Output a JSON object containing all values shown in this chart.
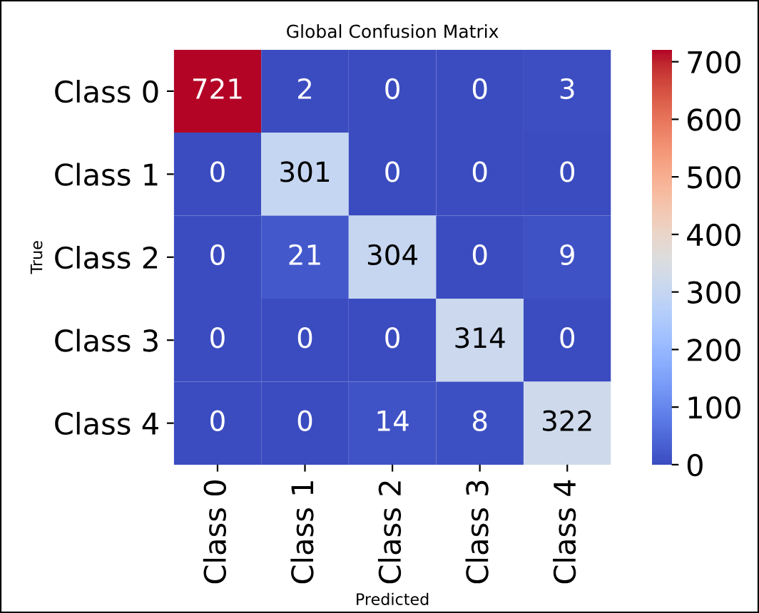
{
  "chart_data": {
    "type": "heatmap",
    "title": "Global Confusion Matrix",
    "xlabel": "Predicted",
    "ylabel": "True",
    "categories": [
      "Class 0",
      "Class 1",
      "Class 2",
      "Class 3",
      "Class 4"
    ],
    "y_categories": [
      "Class 0",
      "Class 1",
      "Class 2",
      "Class 3",
      "Class 4"
    ],
    "cells": [
      [
        721,
        2,
        0,
        0,
        3
      ],
      [
        0,
        301,
        0,
        0,
        0
      ],
      [
        0,
        21,
        304,
        0,
        9
      ],
      [
        0,
        0,
        0,
        314,
        0
      ],
      [
        0,
        0,
        14,
        8,
        322
      ]
    ],
    "data_labels": true,
    "clim": [
      0,
      721
    ],
    "cticks": [
      0,
      100,
      200,
      300,
      400,
      500,
      600,
      700
    ]
  }
}
